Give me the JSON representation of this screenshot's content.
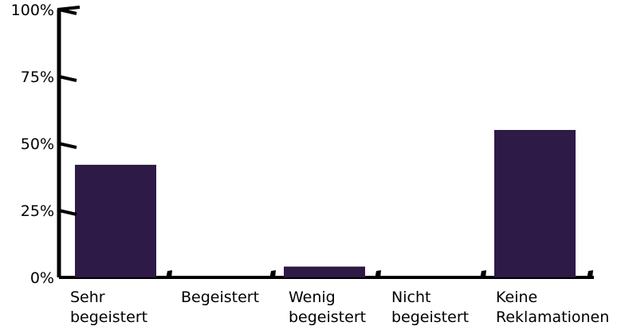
{
  "chart_data": {
    "type": "bar",
    "title": "",
    "xlabel": "",
    "ylabel": "",
    "ylim": [
      0,
      100
    ],
    "yticks": [
      {
        "value": 0,
        "label": "0%"
      },
      {
        "value": 25,
        "label": "25%"
      },
      {
        "value": 50,
        "label": "50%"
      },
      {
        "value": 75,
        "label": "75%"
      },
      {
        "value": 100,
        "label": "100%"
      }
    ],
    "categories": [
      {
        "lines": [
          "Sehr",
          "begeistert"
        ]
      },
      {
        "lines": [
          "Begeistert"
        ]
      },
      {
        "lines": [
          "Wenig",
          "begeistert"
        ]
      },
      {
        "lines": [
          "Nicht",
          "begeistert"
        ]
      },
      {
        "lines": [
          "Keine",
          "Reklamationen"
        ]
      }
    ],
    "values": [
      42,
      0,
      4,
      0,
      55
    ],
    "grid": false,
    "legend": "none",
    "colors": {
      "bar": "#2e1a47",
      "bar_shadow": "#1a0f2b",
      "axis": "#000000"
    }
  }
}
